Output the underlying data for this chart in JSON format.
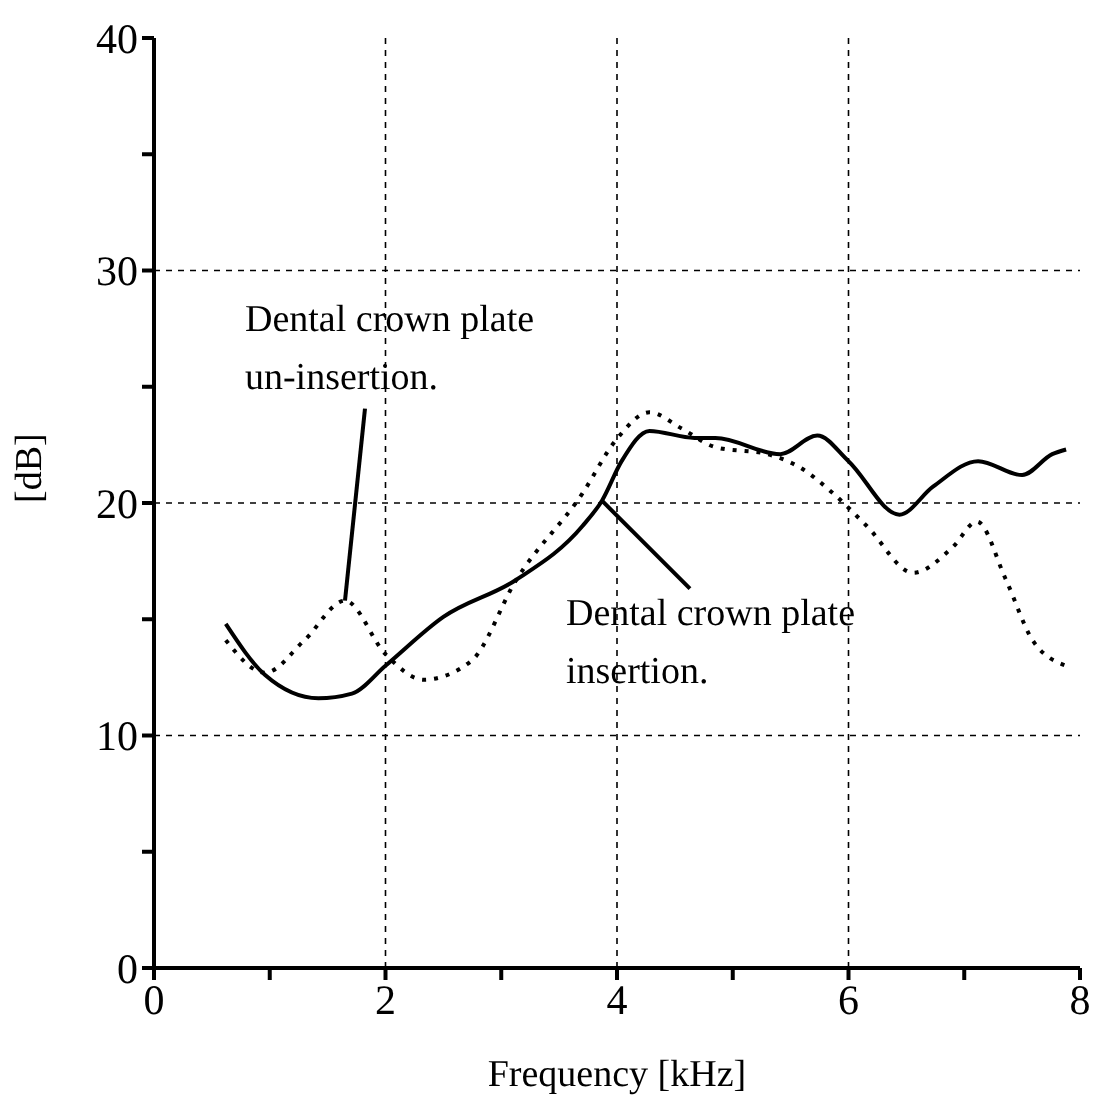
{
  "chart_data": {
    "type": "line",
    "xlabel": "Frequency [kHz]",
    "ylabel": "[dB]",
    "xlim": [
      0,
      8
    ],
    "ylim": [
      0,
      40
    ],
    "xticks": [
      0,
      {
        "value": 1,
        "label": null
      },
      2,
      {
        "value": 3,
        "label": null
      },
      4,
      {
        "value": 5,
        "label": null
      },
      6,
      {
        "value": 7,
        "label": null
      },
      8
    ],
    "yticks": [
      0,
      {
        "value": 5,
        "label": null
      },
      10,
      {
        "value": 15,
        "label": null
      },
      20,
      {
        "value": 25,
        "label": null
      },
      30,
      {
        "value": 35,
        "label": null
      },
      40
    ],
    "grid": true,
    "series": [
      {
        "color": "#000000",
        "line_style": "solid",
        "x": [
          0.62,
          0.96,
          1.42,
          1.71,
          2.0,
          2.5,
          3.13,
          3.7,
          3.87,
          4.04,
          4.28,
          4.67,
          4.85,
          5.41,
          5.73,
          6.0,
          6.44,
          6.73,
          7.12,
          7.5,
          7.76,
          7.88
        ],
        "values": [
          14.8,
          12.6,
          11.6,
          11.8,
          13.0,
          15.1,
          16.7,
          19.0,
          20.1,
          21.8,
          23.1,
          22.8,
          22.8,
          22.1,
          22.9,
          21.8,
          19.5,
          20.7,
          21.8,
          21.2,
          22.1,
          22.3
        ]
      },
      {
        "color": "#000000",
        "line_style": "dotted",
        "x": [
          0.62,
          0.96,
          1.3,
          1.65,
          2.0,
          2.33,
          2.74,
          3.13,
          3.7,
          3.99,
          4.28,
          4.56,
          4.85,
          5.3,
          5.59,
          5.87,
          6.16,
          6.56,
          6.9,
          7.11,
          7.36,
          7.59,
          7.88
        ],
        "values": [
          14.1,
          12.7,
          14.1,
          15.8,
          13.5,
          12.4,
          13.2,
          16.7,
          20.4,
          22.7,
          23.9,
          23.2,
          22.4,
          22.1,
          21.5,
          20.4,
          19.0,
          17.0,
          18.1,
          19.2,
          16.7,
          14.1,
          13.0
        ]
      }
    ],
    "annotations": [
      {
        "text": "Dental crown plate un-insertion.",
        "x": 1.65,
        "y": 15.8
      },
      {
        "text": "Dental crown plate insertion.",
        "x": 3.87,
        "y": 20.1
      }
    ]
  }
}
